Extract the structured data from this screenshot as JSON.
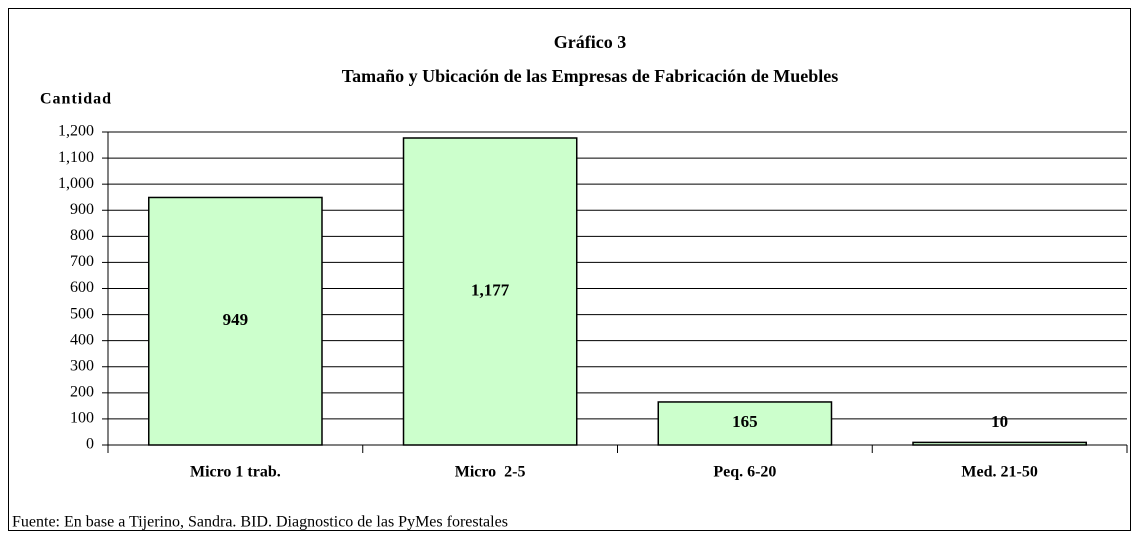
{
  "chart_data": {
    "type": "bar",
    "title": "Gráfico 3",
    "subtitle": "Tamaño y Ubicación de las Empresas de Fabricación de Muebles",
    "y_label": "Cantidad",
    "source": "Fuente: En base a Tijerino, Sandra. BID. Diagnostico de las PyMes forestales",
    "categories": [
      "Micro 1 trab.",
      "Micro  2-5",
      "Peq. 6-20",
      "Med. 21-50"
    ],
    "values": [
      949,
      1177,
      165,
      10
    ],
    "value_labels": [
      "949",
      "1,177",
      "165",
      "10"
    ],
    "color": "#ccffcc",
    "ylim": [
      0,
      1200
    ],
    "yticks": [
      0,
      100,
      200,
      300,
      400,
      500,
      600,
      700,
      800,
      900,
      {
        "value": 1000,
        "label": "1,000"
      },
      {
        "value": 1100,
        "label": "1,100"
      },
      {
        "value": 1200,
        "label": "1,200"
      }
    ],
    "grid": true
  }
}
